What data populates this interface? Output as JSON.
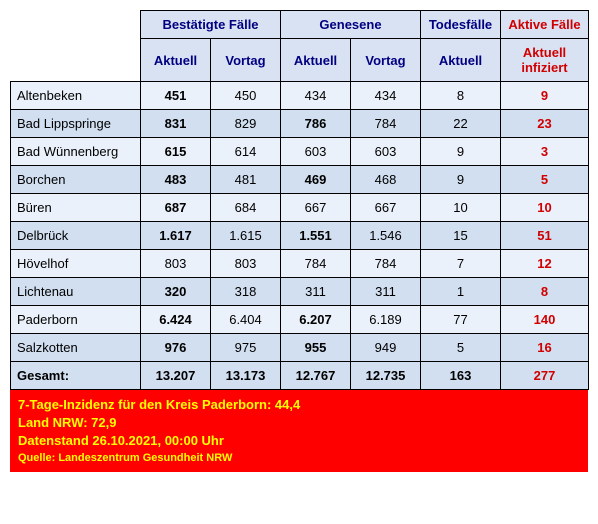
{
  "headers": {
    "group1": "Bestätigte Fälle",
    "group2": "Genesene",
    "group3": "Todesfälle",
    "group4": "Aktive Fälle",
    "sub_aktuell": "Aktuell",
    "sub_vortag": "Vortag",
    "sub_active": "Aktuell infiziert"
  },
  "rows": [
    {
      "name": "Altenbeken",
      "c_akt": "451",
      "c_vor": "450",
      "g_akt": "434",
      "g_vor": "434",
      "t": "8",
      "a": "9"
    },
    {
      "name": "Bad Lippspringe",
      "c_akt": "831",
      "c_vor": "829",
      "g_akt": "786",
      "g_vor": "784",
      "t": "22",
      "a": "23"
    },
    {
      "name": "Bad Wünnenberg",
      "c_akt": "615",
      "c_vor": "614",
      "g_akt": "603",
      "g_vor": "603",
      "t": "9",
      "a": "3"
    },
    {
      "name": "Borchen",
      "c_akt": "483",
      "c_vor": "481",
      "g_akt": "469",
      "g_vor": "468",
      "t": "9",
      "a": "5"
    },
    {
      "name": "Büren",
      "c_akt": "687",
      "c_vor": "684",
      "g_akt": "667",
      "g_vor": "667",
      "t": "10",
      "a": "10"
    },
    {
      "name": "Delbrück",
      "c_akt": "1.617",
      "c_vor": "1.615",
      "g_akt": "1.551",
      "g_vor": "1.546",
      "t": "15",
      "a": "51"
    },
    {
      "name": "Hövelhof",
      "c_akt": "803",
      "c_vor": "803",
      "g_akt": "784",
      "g_vor": "784",
      "t": "7",
      "a": "12"
    },
    {
      "name": "Lichtenau",
      "c_akt": "320",
      "c_vor": "318",
      "g_akt": "311",
      "g_vor": "311",
      "t": "1",
      "a": "8"
    },
    {
      "name": "Paderborn",
      "c_akt": "6.424",
      "c_vor": "6.404",
      "g_akt": "6.207",
      "g_vor": "6.189",
      "t": "77",
      "a": "140"
    },
    {
      "name": "Salzkotten",
      "c_akt": "976",
      "c_vor": "975",
      "g_akt": "955",
      "g_vor": "949",
      "t": "5",
      "a": "16"
    }
  ],
  "total": {
    "label": "Gesamt:",
    "c_akt": "13.207",
    "c_vor": "13.173",
    "g_akt": "12.767",
    "g_vor": "12.735",
    "t": "163",
    "a": "277"
  },
  "footer": {
    "line1": "7-Tage-Inzidenz für den Kreis Paderborn: 44,4",
    "line2": "Land NRW: 72,9",
    "line3": "Datenstand 26.10.2021, 00:00 Uhr",
    "line4": "Quelle: Landeszentrum Gesundheit NRW"
  },
  "colors": {
    "header_bg": "#d9e2f3",
    "header_text": "#000080",
    "active_text": "#d00000",
    "row_even": "#ebf1fa",
    "row_odd": "#d1dff0",
    "footer_bg": "#ff0000",
    "footer_text": "#ffff00",
    "border": "#000000"
  }
}
